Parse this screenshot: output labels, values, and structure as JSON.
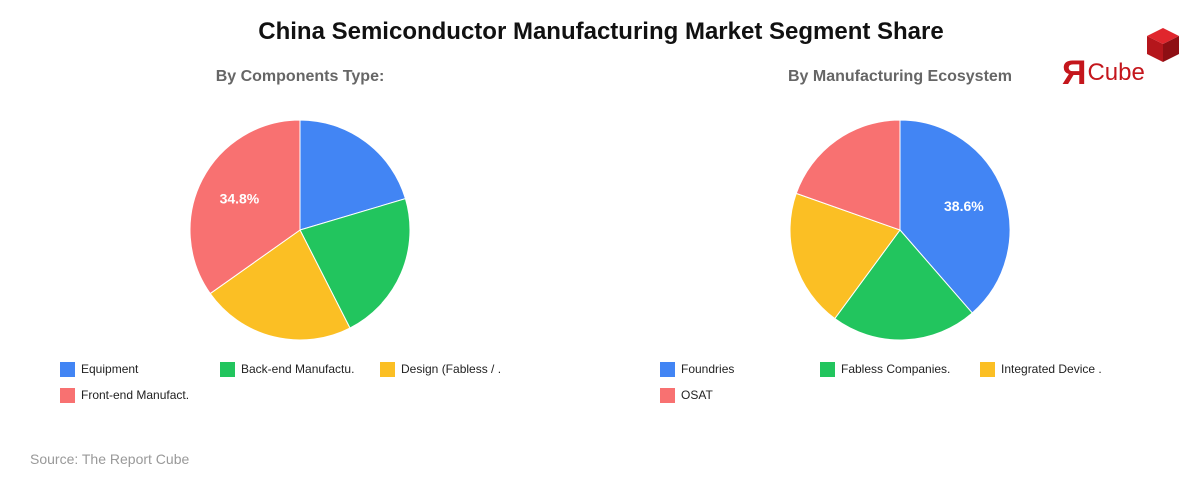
{
  "title": "China Semiconductor Manufacturing Market Segment Share",
  "source": "Source: The Report Cube",
  "logo": {
    "r": "Я",
    "text": "Cube",
    "color": "#c4161c"
  },
  "chart_data": [
    {
      "type": "pie",
      "title": "By Components Type:",
      "categories": [
        "Equipment",
        "Back-end Manufactu.",
        "Design (Fabless / .",
        "Front-end Manufact."
      ],
      "values": [
        20.4,
        22.1,
        22.7,
        34.8
      ],
      "colors": [
        "#4285f4",
        "#22c55e",
        "#fbbf24",
        "#f87171"
      ],
      "labels": [
        "",
        "",
        "",
        "34.8%"
      ],
      "legend": "bottom"
    },
    {
      "type": "pie",
      "title": "By Manufacturing Ecosystem",
      "categories": [
        "Foundries",
        "Fabless Companies.",
        "Integrated Device .",
        "OSAT"
      ],
      "values": [
        38.6,
        21.5,
        20.3,
        19.6
      ],
      "colors": [
        "#4285f4",
        "#22c55e",
        "#fbbf24",
        "#f87171"
      ],
      "labels": [
        "38.6%",
        "",
        "",
        ""
      ],
      "legend": "bottom"
    }
  ]
}
